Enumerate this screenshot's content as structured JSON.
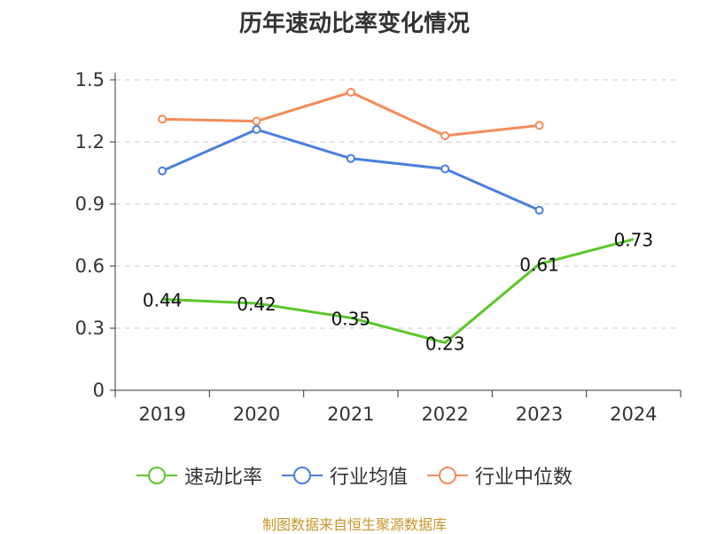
{
  "chart_data": {
    "type": "line",
    "title": "历年速动比率变化情况",
    "categories": [
      "2019",
      "2020",
      "2021",
      "2022",
      "2023",
      "2024"
    ],
    "y_ticks": [
      "0",
      "0.3",
      "0.6",
      "0.9",
      "1.2",
      "1.5"
    ],
    "ylim": [
      0,
      1.5
    ],
    "grid": true,
    "legend_position": "bottom",
    "series": [
      {
        "name": "速动比率",
        "color": "#5cc72a",
        "values": [
          0.44,
          0.42,
          0.35,
          0.23,
          0.61,
          0.73
        ],
        "labels": [
          "0.44",
          "0.42",
          "0.35",
          "0.23",
          "0.61",
          "0.73"
        ]
      },
      {
        "name": "行业均值",
        "color": "#4a7fdc",
        "values": [
          1.06,
          1.26,
          1.12,
          1.07,
          0.87,
          null
        ]
      },
      {
        "name": "行业中位数",
        "color": "#f48c5a",
        "values": [
          1.31,
          1.3,
          1.44,
          1.23,
          1.28,
          null
        ]
      }
    ]
  },
  "source": "制图数据来自恒生聚源数据库"
}
